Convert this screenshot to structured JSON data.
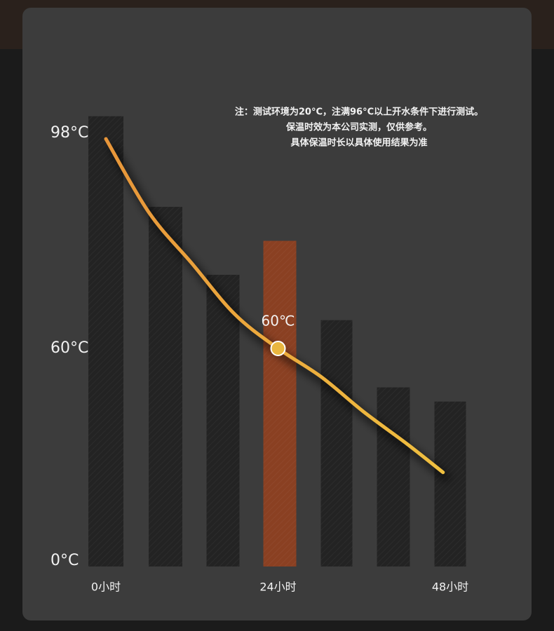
{
  "chart_data": {
    "type": "bar",
    "notes": [
      "注：测试环境为20°C，注满96°C以上开水条件下进行测试。",
      "保温时效为本公司实测，仅供参考。",
      "具体保温时长以具体使用结果为准"
    ],
    "values": [
      101,
      85,
      73,
      79,
      65,
      49,
      45
    ],
    "colors": [
      "#232323",
      "#232323",
      "#232323",
      "#8a4022",
      "#232323",
      "#232323",
      "#232323"
    ],
    "ylim": [
      0,
      102
    ],
    "yticks": [
      {
        "value": 0,
        "label": "0°C"
      },
      {
        "value": 60,
        "label": "60°C"
      },
      {
        "value": 98,
        "label": "98°C"
      }
    ],
    "xlim": [
      0,
      48
    ],
    "xticks": [
      {
        "value": 0,
        "label": "0小时"
      },
      {
        "value": 24,
        "label": "24小时"
      },
      {
        "value": 48,
        "label": "48小时"
      }
    ],
    "curve": {
      "type": "line",
      "x": [
        0,
        6,
        12,
        18,
        24,
        30,
        36,
        42,
        47
      ],
      "values": [
        97,
        84,
        75,
        66,
        60,
        52,
        42,
        33,
        25
      ],
      "colors": [
        "#e8963a",
        "#f0c040"
      ]
    },
    "highlight": {
      "x": 24,
      "value": 60,
      "label": "60℃"
    }
  }
}
